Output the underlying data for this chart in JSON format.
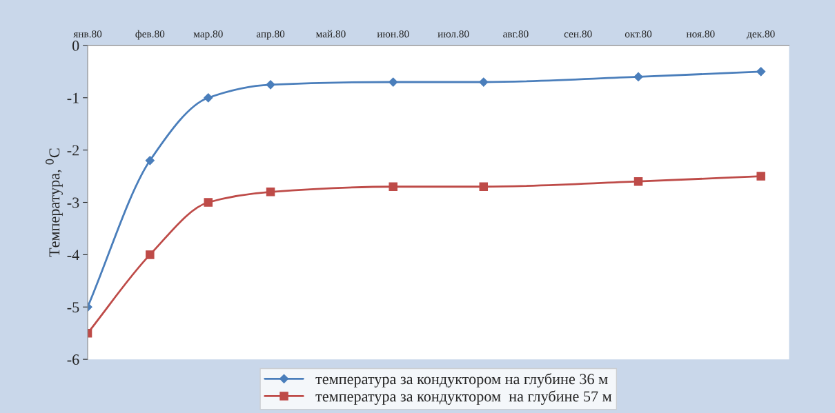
{
  "chart_data": {
    "type": "line",
    "ylabel": "Температура, $^{0}$C",
    "x": [
      "1980-01-01",
      "1980-02-01",
      "1980-03-01",
      "1980-04-01",
      "1980-06-01",
      "1980-07-16",
      "1980-10-01",
      "1980-12-01"
    ],
    "series": [
      {
        "name": "температура за кондуктором на глубине 36 м",
        "color": "#4a7ebb",
        "marker": "diamond",
        "values": [
          -5,
          -2.2,
          -1,
          -0.75,
          -0.7,
          -0.7,
          -0.6,
          -0.5
        ]
      },
      {
        "name": "температура за кондуктором  на глубине 57 м",
        "color": "#be4b48",
        "marker": "square",
        "values": [
          -5.5,
          -4,
          -3,
          -2.8,
          -2.7,
          -2.7,
          -2.6,
          -2.5
        ]
      }
    ],
    "xlim": [
      "1980-01-01",
      "1980-12-15"
    ],
    "xticks": [
      {
        "value": "1980-01-01",
        "label": "янв.80"
      },
      {
        "value": "1980-02-01",
        "label": "фев.80"
      },
      {
        "value": "1980-03-01",
        "label": "мар.80"
      },
      {
        "value": "1980-04-01",
        "label": "апр.80"
      },
      {
        "value": "1980-05-01",
        "label": "май.80"
      },
      {
        "value": "1980-06-01",
        "label": "июн.80"
      },
      {
        "value": "1980-07-01",
        "label": "июл.80"
      },
      {
        "value": "1980-08-01",
        "label": "авг.80"
      },
      {
        "value": "1980-09-01",
        "label": "сен.80"
      },
      {
        "value": "1980-10-01",
        "label": "окт.80"
      },
      {
        "value": "1980-11-01",
        "label": "ноя.80"
      },
      {
        "value": "1980-12-01",
        "label": "дек.80"
      }
    ],
    "ylim": [
      -6,
      0
    ],
    "yticks": [
      -6,
      -5,
      -4,
      -3,
      -2,
      -1,
      0
    ],
    "grid": false,
    "legend": "bottom"
  }
}
